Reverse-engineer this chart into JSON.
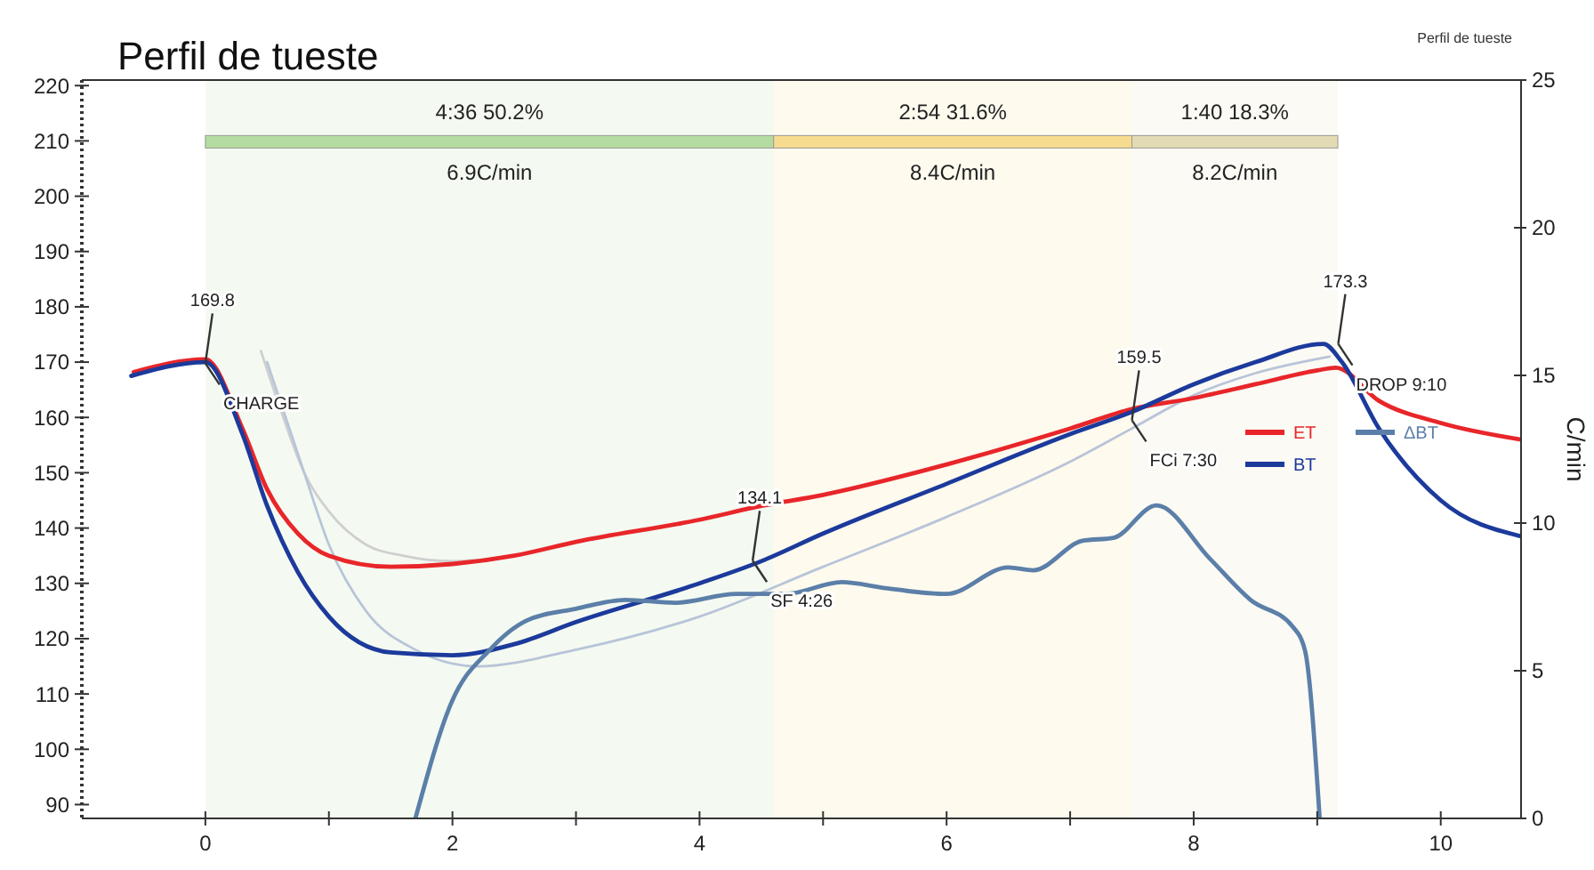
{
  "chart_data": {
    "type": "line",
    "title": "Perfil de tueste",
    "y2label": "C/min",
    "xlim": [
      -1,
      10.65
    ],
    "xticks": [
      0,
      {
        "value": 1,
        "label": null
      },
      2,
      {
        "value": 3,
        "label": null
      },
      4,
      {
        "value": 5,
        "label": null
      },
      6,
      {
        "value": 7,
        "label": null
      },
      8,
      {
        "value": 9,
        "label": null
      },
      10
    ],
    "ylim": [
      87.5,
      221
    ],
    "yticks": [
      90,
      100,
      110,
      120,
      130,
      140,
      150,
      160,
      170,
      180,
      190,
      200,
      210,
      220
    ],
    "y2lim": [
      0,
      25
    ],
    "y2ticks": [
      0,
      5,
      10,
      15,
      20,
      25
    ],
    "grid": false,
    "legend": "right",
    "line_style": "solid",
    "marker": "none",
    "series": [
      {
        "color": "#cfcfcf",
        "x": [
          0.45,
          0.6,
          0.8,
          1.0,
          1.3,
          1.6,
          2.0,
          2.5
        ],
        "values": [
          172,
          162,
          150,
          143,
          137,
          135,
          134,
          135
        ]
      },
      {
        "color": "#b8c4d8",
        "x": [
          0.5,
          0.8,
          1.0,
          1.3,
          1.7,
          2.2,
          3,
          4,
          5,
          6,
          7,
          7.5,
          8,
          8.5,
          9.1
        ],
        "values": [
          170,
          150,
          137,
          125,
          118,
          115,
          118,
          124,
          133,
          142,
          152,
          158,
          164,
          168,
          171
        ]
      },
      {
        "name": "ET",
        "color": "#e8262a",
        "x": [
          -0.58,
          0,
          0.3,
          0.5,
          0.75,
          1.0,
          1.5,
          2.0,
          2.5,
          3,
          4,
          4.5,
          5,
          6,
          7,
          7.5,
          8,
          8.5,
          9,
          9.15,
          9.5,
          10,
          10.65
        ],
        "values": [
          168.2,
          170.5,
          158,
          147,
          139,
          135,
          133,
          133.5,
          135,
          137.5,
          141.5,
          144,
          146,
          151.5,
          158,
          161.5,
          163.5,
          166,
          168.5,
          169,
          163,
          159,
          156
        ]
      },
      {
        "name": "BT",
        "color": "#1c3a9c",
        "x": [
          -0.6,
          0,
          0.3,
          0.5,
          0.75,
          1,
          1.5,
          2,
          2.5,
          3,
          4,
          4.5,
          5,
          6,
          7,
          7.5,
          8,
          8.5,
          9.05,
          9.2,
          9.5,
          10,
          10.65
        ],
        "values": [
          167.5,
          170,
          157,
          144,
          132,
          124,
          117.5,
          117,
          119,
          123,
          130,
          134,
          139,
          148,
          157,
          161,
          166,
          170,
          173.3,
          170,
          158,
          145,
          138.5
        ]
      },
      {
        "name": "ΔBT",
        "color": "#5b7fa8",
        "axis": "y2",
        "x": [
          1.7,
          2.0,
          2.3,
          2.6,
          3.0,
          3.4,
          3.8,
          4.3,
          4.7,
          5.15,
          5.5,
          6.0,
          6.5,
          6.7,
          7.1,
          7.35,
          7.7,
          8.13,
          8.46,
          8.8,
          8.9,
          9.02
        ],
        "values": [
          0,
          4.0,
          5.7,
          6.7,
          7.1,
          7.4,
          7.3,
          7.6,
          7.6,
          8.0,
          7.8,
          7.6,
          8.5,
          8.4,
          9.4,
          9.5,
          10.6,
          8.8,
          7.4,
          6.5,
          5.7,
          0
        ]
      }
    ],
    "bands": [
      {
        "axis": "x",
        "from": 0,
        "to": 4.6,
        "label": "4:36  50.2%",
        "color": "#b5dca0"
      },
      {
        "axis": "x",
        "from": 4.6,
        "to": 7.5,
        "label": "2:54  31.6%",
        "color": "#f7dc8f"
      },
      {
        "axis": "x",
        "from": 7.5,
        "to": 9.167,
        "label": "1:40  18.3%",
        "color": "#e3dbb4"
      }
    ],
    "annotations": [
      {
        "text": "169.8",
        "x": 0,
        "y": 169.8
      },
      {
        "text": "CHARGE",
        "x": 0,
        "y": 169.8
      },
      {
        "text": "134.1",
        "x": 4.43,
        "y": 134.1
      },
      {
        "text": "SF 4:26",
        "x": 4.43,
        "y": 134.1
      },
      {
        "text": "159.5",
        "x": 7.5,
        "y": 159.5
      },
      {
        "text": "FCi 7:30",
        "x": 7.5,
        "y": 159.5
      },
      {
        "text": "173.3",
        "x": 9.17,
        "y": 173.3
      },
      {
        "text": "DROP 9:10",
        "x": 9.17,
        "y": 173.3
      },
      "6.9C/min",
      "8.4C/min",
      "8.2C/min",
      "Perfil de tueste"
    ]
  }
}
